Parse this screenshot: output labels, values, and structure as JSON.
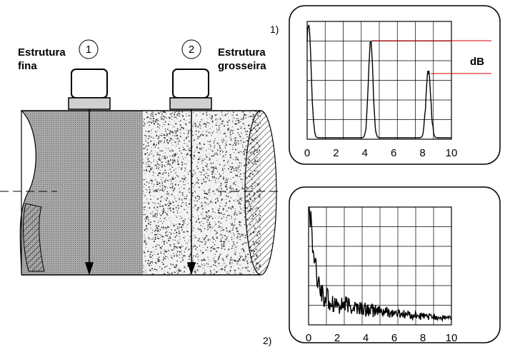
{
  "probes": [
    {
      "number": "1",
      "text": [
        "Estrutura",
        "fina"
      ]
    },
    {
      "number": "2",
      "text": [
        "Estrutura",
        "grosseira"
      ]
    }
  ],
  "screens": [
    {
      "label": "1)",
      "x_labels": [
        0,
        2,
        4,
        6,
        8,
        10
      ]
    },
    {
      "label": "2)",
      "x_labels": [
        0,
        2,
        4,
        6,
        8,
        10
      ]
    }
  ],
  "unit": "dB"
}
